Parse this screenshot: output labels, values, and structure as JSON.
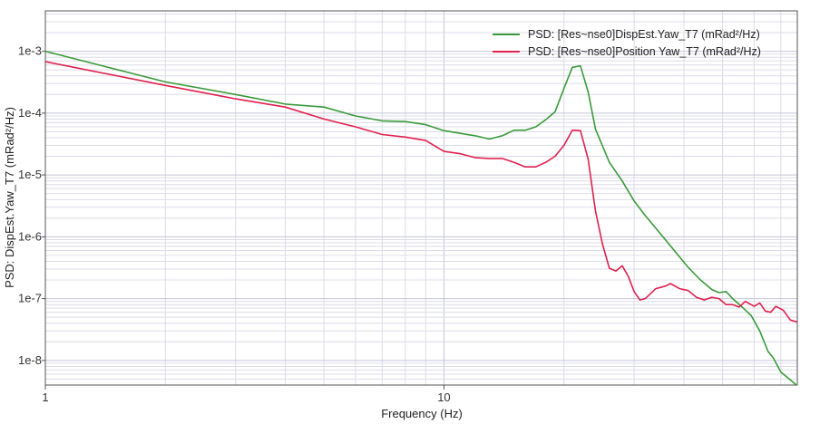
{
  "chart_data": {
    "type": "line",
    "xlabel": "Frequency (Hz)",
    "ylabel": "PSD: DispEst.Yaw_T7 (mRad²/Hz)",
    "xscale": "log",
    "yscale": "log",
    "xlim": [
      1,
      77
    ],
    "ylim": [
      4e-09,
      0.0045
    ],
    "x_ticks": [
      {
        "value": 1,
        "label": "1"
      },
      {
        "value": 10,
        "label": "10"
      }
    ],
    "y_ticks": [
      {
        "value": 0.001,
        "label": "1e-3"
      },
      {
        "value": 0.0001,
        "label": "1e-4"
      },
      {
        "value": 1e-05,
        "label": "1e-5"
      },
      {
        "value": 1e-06,
        "label": "1e-6"
      },
      {
        "value": 1e-07,
        "label": "1e-7"
      },
      {
        "value": 1e-08,
        "label": "1e-8"
      }
    ],
    "grid": true,
    "legend_position": "top-right",
    "series": [
      {
        "name": "PSD: [Res~nse0]DispEst.Yaw_T7 (mRad²/Hz)",
        "color": "#3a9a3a",
        "points": [
          [
            1,
            0.001
          ],
          [
            2,
            0.00032
          ],
          [
            3,
            0.0002
          ],
          [
            4,
            0.00014
          ],
          [
            5,
            0.000125
          ],
          [
            6,
            9e-05
          ],
          [
            7,
            7.5e-05
          ],
          [
            8,
            7.3e-05
          ],
          [
            9,
            6.5e-05
          ],
          [
            10,
            5.2e-05
          ],
          [
            11,
            4.7e-05
          ],
          [
            12,
            4.3e-05
          ],
          [
            13,
            3.8e-05
          ],
          [
            14,
            4.3e-05
          ],
          [
            15,
            5.3e-05
          ],
          [
            16,
            5.3e-05
          ],
          [
            17,
            6e-05
          ],
          [
            18,
            7.8e-05
          ],
          [
            19,
            0.000105
          ],
          [
            20,
            0.00025
          ],
          [
            21,
            0.00055
          ],
          [
            22,
            0.00058
          ],
          [
            23,
            0.00022
          ],
          [
            24,
            5.5e-05
          ],
          [
            26,
            1.6e-05
          ],
          [
            28,
            8e-06
          ],
          [
            30,
            3.8e-06
          ],
          [
            32,
            2.2e-06
          ],
          [
            35,
            1.1e-06
          ],
          [
            38,
            5.8e-07
          ],
          [
            41,
            3.2e-07
          ],
          [
            44,
            2e-07
          ],
          [
            47,
            1.4e-07
          ],
          [
            49,
            1.25e-07
          ],
          [
            51,
            1.3e-07
          ],
          [
            53,
            1e-07
          ],
          [
            56,
            7.3e-08
          ],
          [
            59,
            5.3e-08
          ],
          [
            62,
            3e-08
          ],
          [
            65,
            1.4e-08
          ],
          [
            67,
            1.1e-08
          ],
          [
            70,
            6.5e-09
          ],
          [
            73,
            5.2e-09
          ],
          [
            77,
            3.9e-09
          ]
        ]
      },
      {
        "name": "PSD: [Res~nse0]Position Yaw_T7 (mRad²/Hz)",
        "color": "#e0204e",
        "points": [
          [
            1,
            0.00068
          ],
          [
            2,
            0.00028
          ],
          [
            3,
            0.00017
          ],
          [
            4,
            0.000125
          ],
          [
            5,
            8e-05
          ],
          [
            6,
            6e-05
          ],
          [
            7,
            4.5e-05
          ],
          [
            8,
            4.1e-05
          ],
          [
            9,
            3.6e-05
          ],
          [
            10,
            2.4e-05
          ],
          [
            11,
            2.2e-05
          ],
          [
            12,
            1.9e-05
          ],
          [
            13,
            1.85e-05
          ],
          [
            14,
            1.85e-05
          ],
          [
            15,
            1.6e-05
          ],
          [
            16,
            1.35e-05
          ],
          [
            17,
            1.35e-05
          ],
          [
            18,
            1.6e-05
          ],
          [
            19,
            2e-05
          ],
          [
            20,
            3e-05
          ],
          [
            21,
            5.3e-05
          ],
          [
            22,
            5.2e-05
          ],
          [
            23,
            1.8e-05
          ],
          [
            24,
            2.6e-06
          ],
          [
            25,
            7.5e-07
          ],
          [
            26,
            3.1e-07
          ],
          [
            27,
            2.8e-07
          ],
          [
            28,
            3.4e-07
          ],
          [
            29,
            2.3e-07
          ],
          [
            30,
            1.3e-07
          ],
          [
            31,
            9.5e-08
          ],
          [
            32,
            1e-07
          ],
          [
            34,
            1.45e-07
          ],
          [
            36,
            1.6e-07
          ],
          [
            37,
            1.75e-07
          ],
          [
            39,
            1.45e-07
          ],
          [
            41,
            1.35e-07
          ],
          [
            43,
            1.05e-07
          ],
          [
            45,
            9.5e-08
          ],
          [
            47,
            1.05e-07
          ],
          [
            49,
            1e-07
          ],
          [
            51,
            8e-08
          ],
          [
            53,
            8e-08
          ],
          [
            55,
            7.3e-08
          ],
          [
            57,
            9e-08
          ],
          [
            60,
            7.5e-08
          ],
          [
            62,
            8.5e-08
          ],
          [
            64,
            6.3e-08
          ],
          [
            66,
            6e-08
          ],
          [
            68,
            7.5e-08
          ],
          [
            71,
            6.5e-08
          ],
          [
            74,
            4.5e-08
          ],
          [
            77,
            4.2e-08
          ]
        ]
      }
    ]
  }
}
